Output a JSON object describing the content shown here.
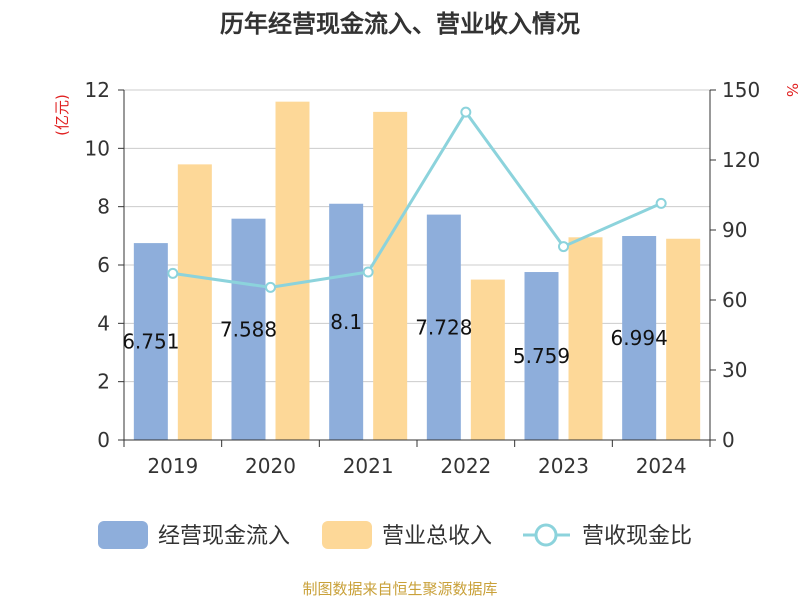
{
  "chart_data": {
    "type": "bar",
    "title": "历年经营现金流入、营业收入情况",
    "categories": [
      "2019",
      "2020",
      "2021",
      "2022",
      "2023",
      "2024"
    ],
    "series": [
      {
        "name": "经营现金流入",
        "type": "bar",
        "axis": "left",
        "values": [
          6.751,
          7.588,
          8.1,
          7.728,
          5.759,
          6.994
        ],
        "color": "#8eaedb"
      },
      {
        "name": "营业总收入",
        "type": "bar",
        "axis": "left",
        "values": [
          9.45,
          11.6,
          11.25,
          5.5,
          6.95,
          6.9
        ],
        "color": "#fdd898"
      },
      {
        "name": "营收现金比",
        "type": "line",
        "axis": "right",
        "values": [
          71.4,
          65.4,
          72.0,
          140.5,
          82.9,
          101.4
        ],
        "color": "#8cd3dc"
      }
    ],
    "ylabel_left": "(亿元)",
    "ylabel_right": "%",
    "ylim_left": [
      0,
      12
    ],
    "ylim_right": [
      0,
      150
    ],
    "yticks_left": [
      "0",
      "2",
      "4",
      "6",
      "8",
      "10",
      "12"
    ],
    "yticks_right": [
      "0",
      "30",
      "60",
      "90",
      "120",
      "150"
    ],
    "data_labels": [
      "6.751",
      "7.588",
      "8.1",
      "7.728",
      "5.759",
      "6.994"
    ],
    "grid": true,
    "legend_position": "bottom"
  },
  "source": "制图数据来自恒生聚源数据库"
}
